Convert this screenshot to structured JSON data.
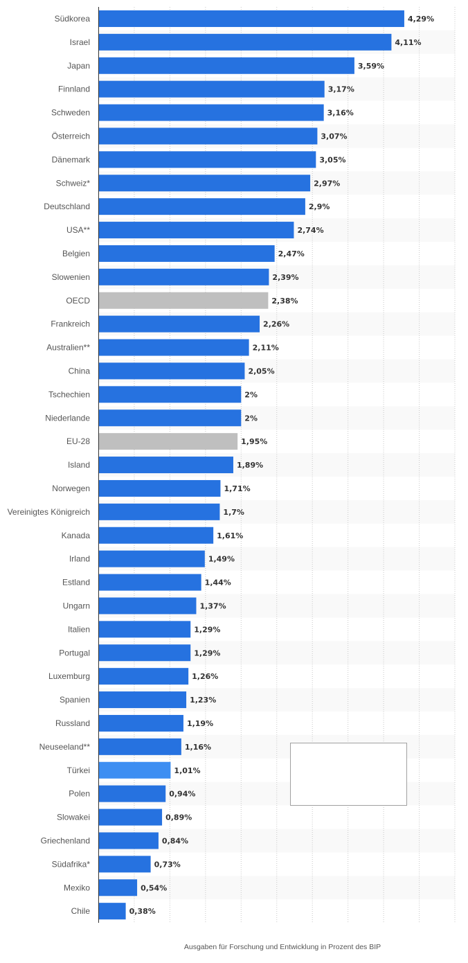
{
  "chart_data": {
    "type": "bar",
    "orientation": "horizontal",
    "title": "",
    "xlabel": "Ausgaben für Forschung und Entwicklung in Prozent des BIP",
    "ylabel": "",
    "xlim": [
      0,
      5
    ],
    "grid": true,
    "legend": "none",
    "colors": {
      "default": "#2672e0",
      "highlight_gray": "#bfbfbf",
      "highlight_light": "#3d8ef2"
    },
    "categories": [
      "Südkorea",
      "Israel",
      "Japan",
      "Finnland",
      "Schweden",
      "Österreich",
      "Dänemark",
      "Schweiz*",
      "Deutschland",
      "USA**",
      "Belgien",
      "Slowenien",
      "OECD",
      "Frankreich",
      "Australien**",
      "China",
      "Tschechien",
      "Niederlande",
      "EU-28",
      "Island",
      "Norwegen",
      "Vereinigtes Königreich",
      "Kanada",
      "Irland",
      "Estland",
      "Ungarn",
      "Italien",
      "Portugal",
      "Luxemburg",
      "Spanien",
      "Russland",
      "Neuseeland**",
      "Türkei",
      "Polen",
      "Slowakei",
      "Griechenland",
      "Südafrika*",
      "Mexiko",
      "Chile"
    ],
    "values": [
      4.29,
      4.11,
      3.59,
      3.17,
      3.16,
      3.07,
      3.05,
      2.97,
      2.9,
      2.74,
      2.47,
      2.39,
      2.38,
      2.26,
      2.11,
      2.05,
      2.0,
      2.0,
      1.95,
      1.89,
      1.71,
      1.7,
      1.61,
      1.49,
      1.44,
      1.37,
      1.29,
      1.29,
      1.26,
      1.23,
      1.19,
      1.16,
      1.01,
      0.94,
      0.89,
      0.84,
      0.73,
      0.54,
      0.38
    ],
    "value_labels": [
      "4,29%",
      "4,11%",
      "3,59%",
      "3,17%",
      "3,16%",
      "3,07%",
      "3,05%",
      "2,97%",
      "2,9%",
      "2,74%",
      "2,47%",
      "2,39%",
      "2,38%",
      "2,26%",
      "2,11%",
      "2,05%",
      "2%",
      "2%",
      "1,95%",
      "1,89%",
      "1,71%",
      "1,7%",
      "1,61%",
      "1,49%",
      "1,44%",
      "1,37%",
      "1,29%",
      "1,29%",
      "1,26%",
      "1,23%",
      "1,19%",
      "1,16%",
      "1,01%",
      "0,94%",
      "0,89%",
      "0,84%",
      "0,73%",
      "0,54%",
      "0,38%"
    ],
    "bar_colors": [
      "default",
      "default",
      "default",
      "default",
      "default",
      "default",
      "default",
      "default",
      "default",
      "default",
      "default",
      "default",
      "highlight_gray",
      "default",
      "default",
      "default",
      "default",
      "default",
      "highlight_gray",
      "default",
      "default",
      "default",
      "default",
      "default",
      "default",
      "default",
      "default",
      "default",
      "default",
      "default",
      "default",
      "default",
      "highlight_light",
      "default",
      "default",
      "default",
      "default",
      "default",
      "default"
    ]
  }
}
